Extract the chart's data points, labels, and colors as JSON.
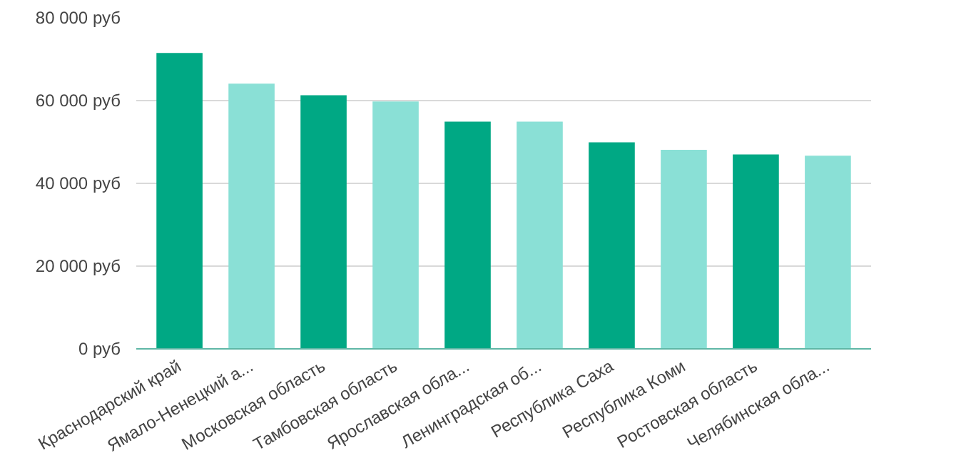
{
  "chart_data": {
    "type": "bar",
    "categories": [
      "Краснодарский край",
      "Ямало-Ненецкий а...",
      "Московская область",
      "Тамбовская область",
      "Ярославская обла...",
      "Ленинградская об...",
      "Республика Саха",
      "Республика Коми",
      "Ростовская область",
      "Челябинская обла..."
    ],
    "values": [
      71500,
      64100,
      61300,
      59800,
      54900,
      54900,
      49900,
      48100,
      47000,
      46700
    ],
    "colors": [
      "#00a884",
      "#8ae0d6",
      "#00a884",
      "#8ae0d6",
      "#00a884",
      "#8ae0d6",
      "#00a884",
      "#8ae0d6",
      "#00a884",
      "#8ae0d6"
    ],
    "ylim": [
      0,
      80000
    ],
    "yticks": [
      {
        "value": 0,
        "label": "0 руб"
      },
      {
        "value": 20000,
        "label": "20 000 руб"
      },
      {
        "value": 40000,
        "label": "40 000 руб"
      },
      {
        "value": 60000,
        "label": "60 000 руб"
      },
      {
        "value": 80000,
        "label": "80 000 руб"
      }
    ],
    "grid": "y"
  }
}
